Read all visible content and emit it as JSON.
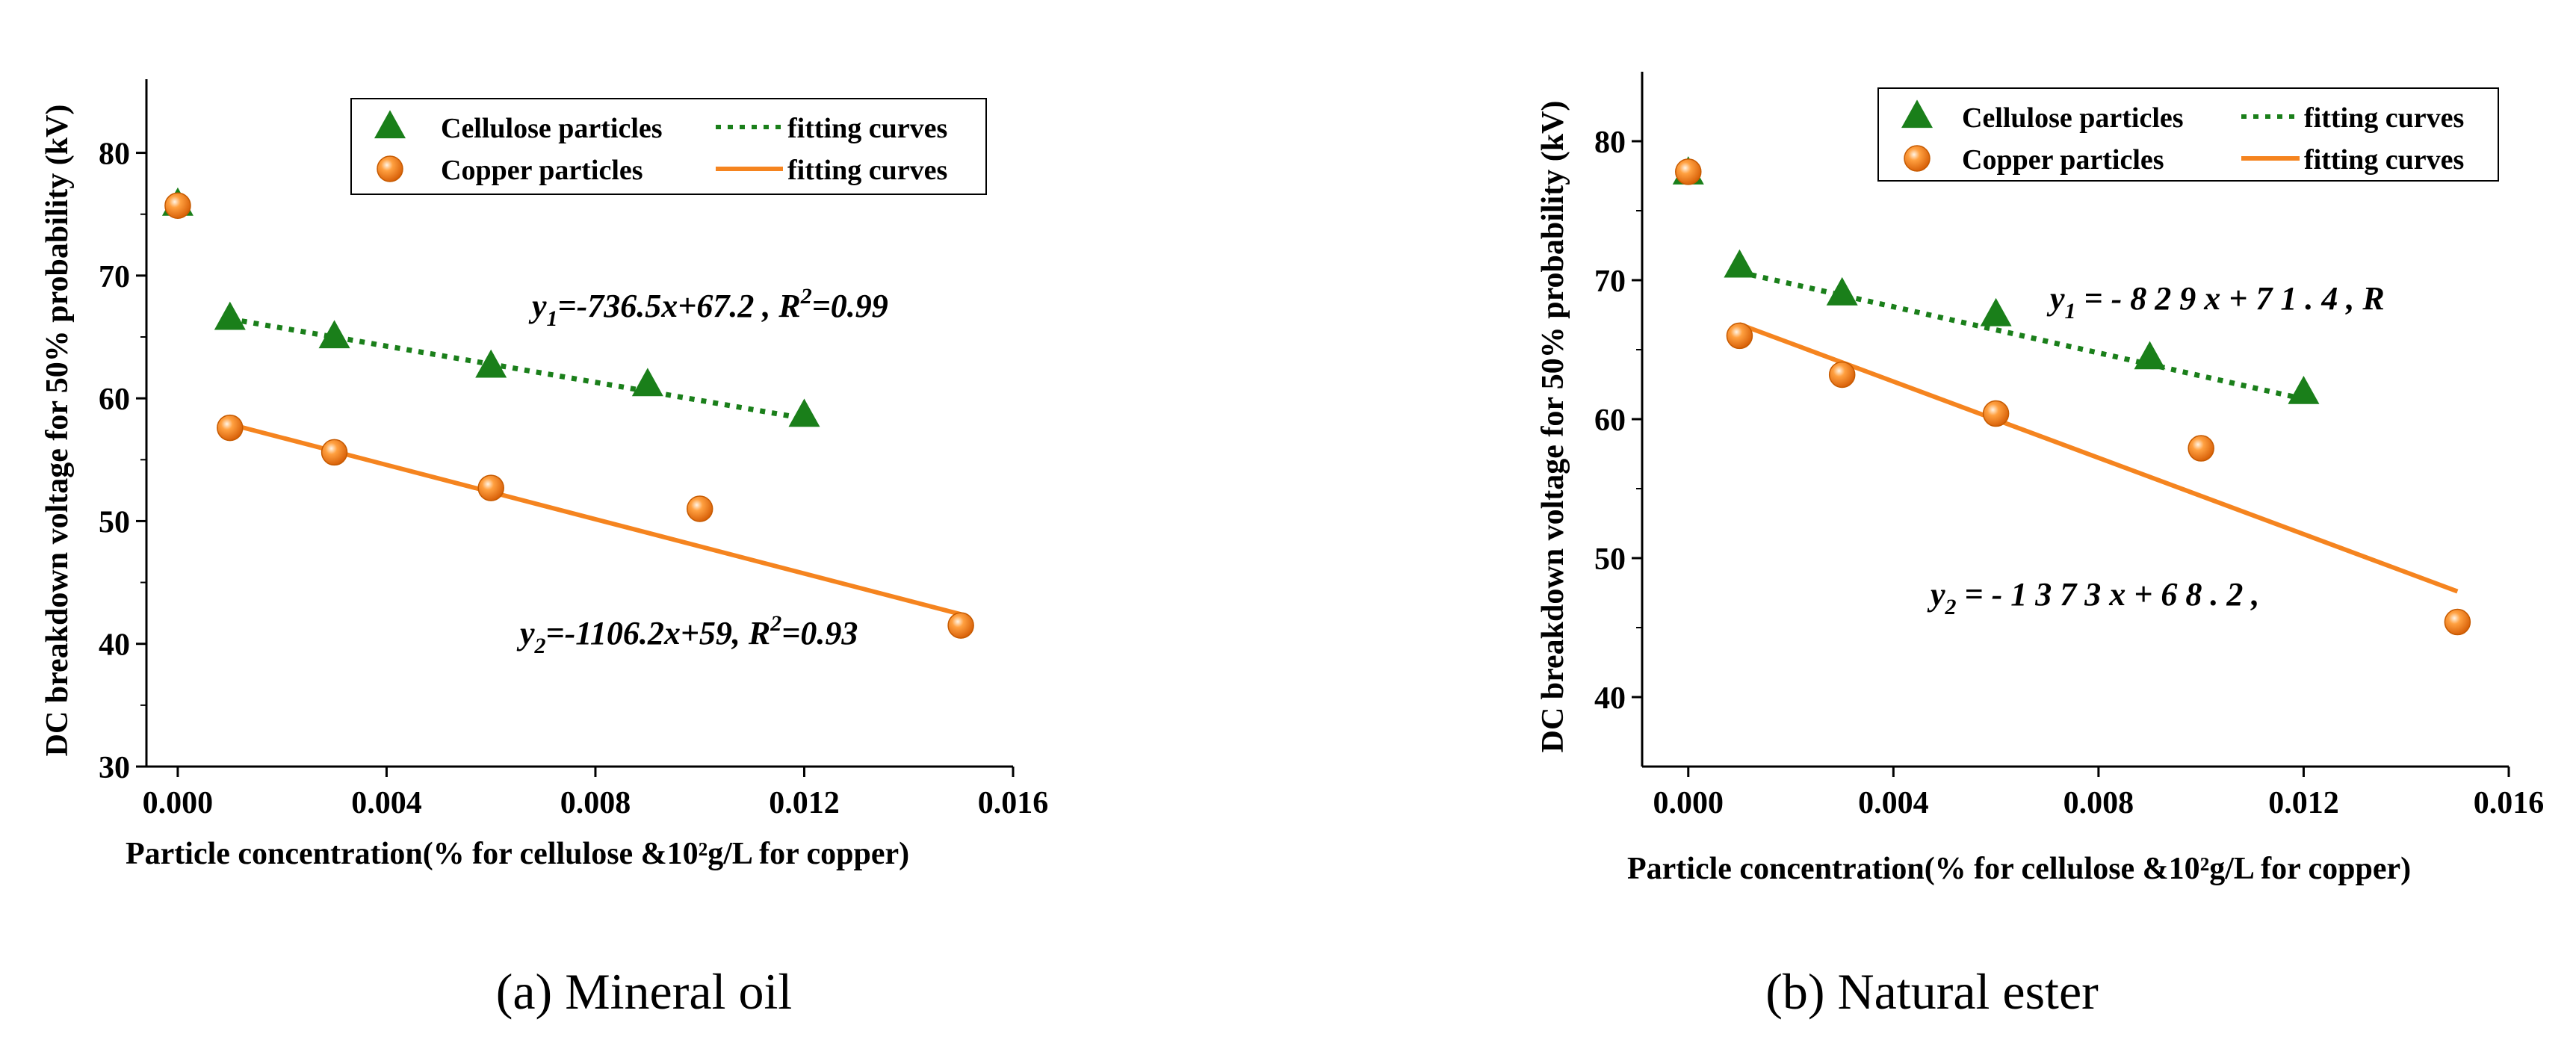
{
  "colors": {
    "cellulose": "#1a7f1a",
    "copper": "#f5841f",
    "axis": "#000000"
  },
  "chart_data": [
    {
      "type": "scatter",
      "caption": "(a) Mineral oil",
      "xlabel": "Particle concentration(% for cellulose &10²g/L for copper)",
      "ylabel": "DC breakdown voltage for 50% probability (kV)",
      "xlim": [
        -0.0006,
        0.016
      ],
      "ylim": [
        30,
        86
      ],
      "xticks": [
        0.0,
        0.004,
        0.008,
        0.012,
        0.016
      ],
      "xtick_labels": [
        "0.000",
        "0.004",
        "0.008",
        "0.012",
        "0.016"
      ],
      "yticks": [
        30,
        40,
        50,
        60,
        70,
        80
      ],
      "ytick_labels": [
        "30",
        "40",
        "50",
        "60",
        "70",
        "80"
      ],
      "legend": [
        {
          "label": "Cellulose particles",
          "marker": "triangle",
          "fit_label": "fitting curves",
          "fit_style": "dotted"
        },
        {
          "label": "Copper  particles",
          "marker": "sphere",
          "fit_label": "fitting curves",
          "fit_style": "solid"
        }
      ],
      "series": [
        {
          "name": "Cellulose particles",
          "marker": "triangle",
          "x": [
            0.0,
            0.001,
            0.003,
            0.006,
            0.009,
            0.012
          ],
          "y": [
            75.8,
            66.5,
            65.0,
            62.6,
            61.1,
            58.6
          ]
        },
        {
          "name": "Copper particles",
          "marker": "sphere",
          "x": [
            0.0,
            0.001,
            0.003,
            0.006,
            0.01,
            0.015
          ],
          "y": [
            75.7,
            57.6,
            55.6,
            52.7,
            51.0,
            41.5
          ]
        }
      ],
      "fits": [
        {
          "series": "Cellulose particles",
          "style": "dotted",
          "slope": -736.5,
          "intercept": 67.2,
          "x_range": [
            0.001,
            0.012
          ],
          "equation": {
            "var": "y",
            "sub": "1",
            "rest": "=-736.5x+67.2 , R",
            "sup": "2",
            "tail": "=0.99"
          }
        },
        {
          "series": "Copper particles",
          "style": "solid",
          "slope": -1106.2,
          "intercept": 59,
          "x_range": [
            0.001,
            0.015
          ],
          "equation": {
            "var": "y",
            "sub": "2",
            "rest": "=-1106.2x+59, R",
            "sup": "2",
            "tail": "=0.93"
          }
        }
      ]
    },
    {
      "type": "scatter",
      "caption": "(b) Natural ester",
      "xlabel": "Particle concentration(% for cellulose &10²g/L for copper)",
      "ylabel": "DC breakdown voltage for 50% probability (kV)",
      "xlim": [
        -0.0009,
        0.016
      ],
      "ylim": [
        35,
        85
      ],
      "xticks": [
        0.0,
        0.004,
        0.008,
        0.012,
        0.016
      ],
      "xtick_labels": [
        "0.000",
        "0.004",
        "0.008",
        "0.012",
        "0.016"
      ],
      "yticks": [
        40,
        50,
        60,
        70,
        80
      ],
      "ytick_labels": [
        "40",
        "50",
        "60",
        "70",
        "80"
      ],
      "legend": [
        {
          "label": "Cellulose particles",
          "marker": "triangle",
          "fit_label": "fitting curves",
          "fit_style": "dotted"
        },
        {
          "label": "Copper particles",
          "marker": "sphere",
          "fit_label": "fitting curves",
          "fit_style": "solid"
        }
      ],
      "series": [
        {
          "name": "Cellulose particles",
          "marker": "triangle",
          "x": [
            0.0,
            0.001,
            0.003,
            0.006,
            0.009,
            0.012
          ],
          "y": [
            77.7,
            71.0,
            69.0,
            67.5,
            64.4,
            61.9
          ]
        },
        {
          "name": "Copper particles",
          "marker": "sphere",
          "x": [
            0.0,
            0.001,
            0.003,
            0.006,
            0.01,
            0.015
          ],
          "y": [
            77.8,
            66.0,
            63.2,
            60.4,
            57.9,
            45.4
          ]
        }
      ],
      "fits": [
        {
          "series": "Cellulose particles",
          "style": "dotted",
          "slope": -829,
          "intercept": 71.4,
          "x_range": [
            0.001,
            0.012
          ],
          "equation": {
            "var": "y",
            "sub": "1",
            "rest": " = - 8 2 9 x + 7 1 . 4 ,  R",
            "sup": "",
            "tail": ""
          }
        },
        {
          "series": "Copper particles",
          "style": "solid",
          "slope": -1373,
          "intercept": 68.2,
          "x_range": [
            0.001,
            0.015
          ],
          "equation": {
            "var": "y",
            "sub": "2",
            "rest": " = - 1 3 7 3 x + 6 8 . 2 ,",
            "sup": "",
            "tail": ""
          }
        }
      ]
    }
  ]
}
